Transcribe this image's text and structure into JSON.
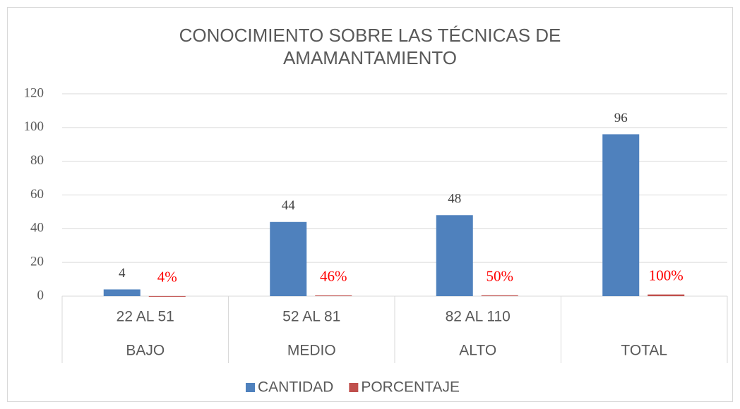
{
  "chart_data": {
    "type": "bar",
    "title": [
      "CONOCIMIENTO SOBRE LAS TÉCNICAS DE",
      "AMAMANTAMIENTO"
    ],
    "categories": [
      "BAJO",
      "MEDIO",
      "ALTO",
      "TOTAL"
    ],
    "subcategories": [
      "22 AL 51",
      "52 AL 81",
      "82 AL 110",
      null
    ],
    "series": [
      {
        "name": "CANTIDAD",
        "color": "#4f81bd",
        "values": [
          4,
          44,
          48,
          96
        ]
      },
      {
        "name": "PORCENTAJE",
        "color": "#c0504d",
        "values": [
          0.04,
          0.46,
          0.5,
          1
        ],
        "value_labels": [
          "4%",
          "46%",
          "50%",
          "100%"
        ],
        "label_color": "#ff0000"
      }
    ],
    "ylim": [
      0,
      120
    ],
    "yticks": [
      0,
      20,
      40,
      60,
      80,
      100,
      120
    ],
    "grid": true,
    "legend": "bottom"
  }
}
